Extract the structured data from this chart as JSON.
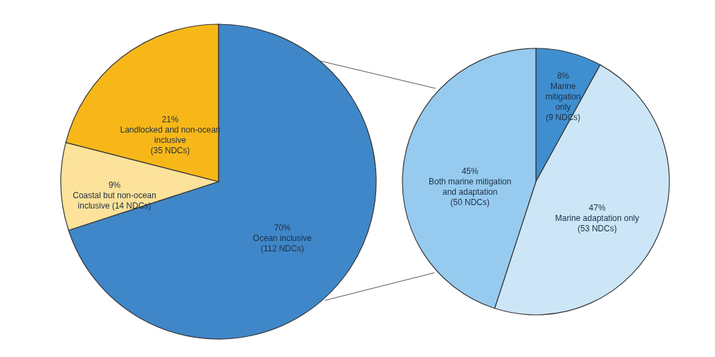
{
  "chart_data": [
    {
      "type": "pie",
      "categories": [
        "Ocean inclusive\n(112 NDCs)",
        "Coastal but non-ocean\ninclusive (14 NDCs)",
        "Landlocked and non-ocean\ninclusive\n(35 NDCs)"
      ],
      "values": [
        70,
        9,
        21
      ],
      "value_labels": [
        "70%",
        "9%",
        "21%"
      ],
      "colors": [
        "#3f87c8",
        "#fce29a",
        "#f8b719"
      ]
    },
    {
      "type": "pie",
      "categories": [
        "Marine\nmitigation\nonly\n(9 NDCs)",
        "Marine adaptation only\n(53 NDCs)",
        "Both marine mitigation\nand adaptation\n(50 NDCs)"
      ],
      "values": [
        8,
        47,
        45
      ],
      "value_labels": [
        "8%",
        "47%",
        "45%"
      ],
      "colors": [
        "#3f8fd0",
        "#cde6f7",
        "#96cbef"
      ]
    }
  ]
}
